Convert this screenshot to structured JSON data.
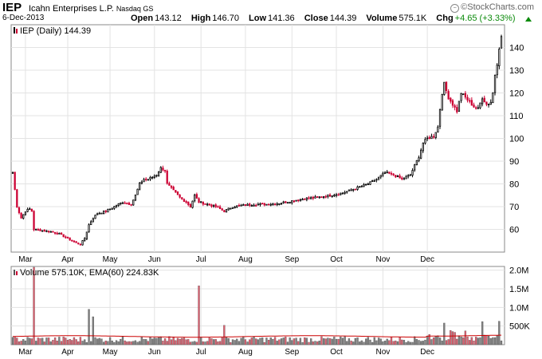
{
  "header": {
    "ticker": "IEP",
    "company": "Icahn Enterprises L.P.",
    "exchange": "Nasdaq GS",
    "date": "6-Dec-2013",
    "open_label": "Open",
    "open": "143.12",
    "high_label": "High",
    "high": "146.70",
    "low_label": "Low",
    "low": "141.36",
    "close_label": "Close",
    "close": "144.39",
    "volume_label": "Volume",
    "volume": "575.1K",
    "chg_label": "Chg",
    "chg": "+4.65 (+3.33%)",
    "brand": "©StockCharts.com",
    "chg_color": "#0a8a0a"
  },
  "colors": {
    "up": "#000000",
    "down": "#cc0033",
    "vol_up": "#808080",
    "vol_down": "#e06070",
    "ema": "#cc0000",
    "grid": "#e3e3e3"
  },
  "chart_data": [
    {
      "type": "candlestick",
      "legend": "IEP (Daily) 144.39",
      "ylim": [
        50,
        150
      ],
      "yticks": [
        60,
        70,
        80,
        90,
        100,
        110,
        120,
        130,
        140
      ],
      "x_months": [
        "Mar",
        "Apr",
        "May",
        "Jun",
        "Jul",
        "Aug",
        "Sep",
        "Oct",
        "Nov",
        "Dec"
      ],
      "close_path": [
        [
          0,
          85
        ],
        [
          2,
          70
        ],
        [
          4,
          65
        ],
        [
          6,
          68
        ],
        [
          8,
          69
        ],
        [
          9,
          68
        ],
        [
          10,
          60
        ],
        [
          14,
          59.5
        ],
        [
          18,
          59
        ],
        [
          22,
          58
        ],
        [
          26,
          56
        ],
        [
          30,
          54
        ],
        [
          32,
          53.5
        ],
        [
          34,
          56
        ],
        [
          36,
          62
        ],
        [
          38,
          65
        ],
        [
          40,
          67
        ],
        [
          44,
          68
        ],
        [
          48,
          70
        ],
        [
          52,
          72
        ],
        [
          56,
          71
        ],
        [
          58,
          75
        ],
        [
          60,
          80
        ],
        [
          62,
          82
        ],
        [
          64,
          82
        ],
        [
          66,
          83
        ],
        [
          68,
          84
        ],
        [
          70,
          87
        ],
        [
          72,
          86
        ],
        [
          73,
          80
        ],
        [
          76,
          77
        ],
        [
          79,
          74
        ],
        [
          82,
          72
        ],
        [
          84,
          70
        ],
        [
          86,
          75
        ],
        [
          88,
          72
        ],
        [
          92,
          71
        ],
        [
          96,
          70
        ],
        [
          100,
          68
        ],
        [
          104,
          70
        ],
        [
          108,
          70.5
        ],
        [
          114,
          71
        ],
        [
          120,
          71
        ],
        [
          126,
          71.5
        ],
        [
          132,
          72.5
        ],
        [
          138,
          73.5
        ],
        [
          144,
          74
        ],
        [
          150,
          75
        ],
        [
          156,
          76
        ],
        [
          162,
          78
        ],
        [
          168,
          80
        ],
        [
          172,
          82
        ],
        [
          176,
          85
        ],
        [
          180,
          84
        ],
        [
          184,
          82
        ],
        [
          188,
          84
        ],
        [
          190,
          88
        ],
        [
          192,
          92
        ],
        [
          194,
          98
        ],
        [
          196,
          100
        ],
        [
          199,
          101
        ],
        [
          201,
          105
        ],
        [
          202,
          113
        ],
        [
          203,
          120
        ],
        [
          204,
          124
        ],
        [
          206,
          118
        ],
        [
          208,
          115
        ],
        [
          210,
          112
        ],
        [
          212,
          120
        ],
        [
          214,
          118
        ],
        [
          216,
          116
        ],
        [
          218,
          114
        ],
        [
          220,
          113
        ],
        [
          222,
          118
        ],
        [
          224,
          115
        ],
        [
          226,
          116
        ],
        [
          227,
          120
        ],
        [
          228,
          128
        ],
        [
          229,
          133
        ],
        [
          230,
          140
        ],
        [
          231,
          144.39
        ]
      ]
    },
    {
      "type": "bar",
      "legend": "Volume 575.10K, EMA(60) 224.83K",
      "ylim": [
        0,
        2.1
      ],
      "ytick_labels": [
        "2.0M",
        "1.5M",
        "1.0M",
        "500K"
      ],
      "ytick_values": [
        2.0,
        1.5,
        1.0,
        0.5
      ],
      "x_months": [
        "Mar",
        "Apr",
        "May",
        "Jun",
        "Jul",
        "Aug",
        "Sep",
        "Oct",
        "Nov",
        "Dec"
      ],
      "spikes": [
        [
          10,
          2.08
        ],
        [
          36,
          0.95
        ],
        [
          38,
          0.75
        ],
        [
          88,
          1.58
        ],
        [
          100,
          0.52
        ],
        [
          204,
          0.58
        ],
        [
          222,
          0.62
        ],
        [
          230,
          0.63
        ]
      ],
      "ema_level": 0.22
    }
  ]
}
